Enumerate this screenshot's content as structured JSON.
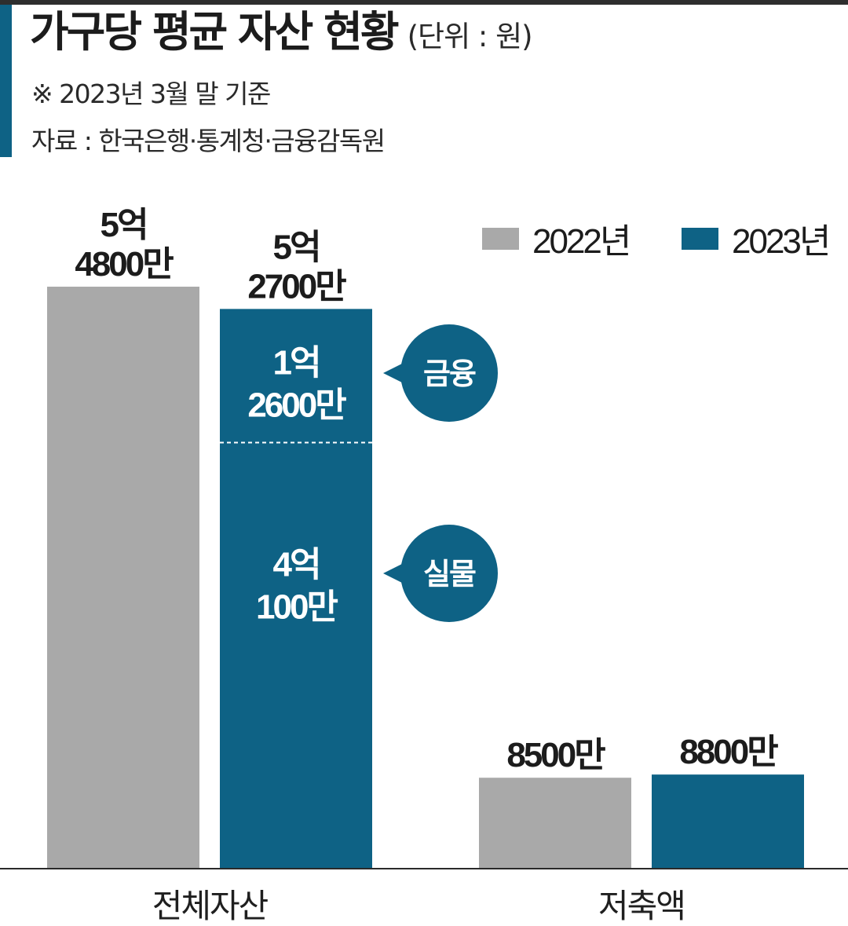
{
  "header": {
    "title": "가구당 평균 자산 현황",
    "unit_note": "(단위 : 원)",
    "date_note": "※ 2023년 3월 말 기준",
    "source": "자료 : 한국은행·통계청·금융감독원"
  },
  "colors": {
    "y2022": "#a9a9a9",
    "y2023": "#0e6285",
    "accent": "#0e6285"
  },
  "chart_data": {
    "type": "bar",
    "unit": "원",
    "categories": [
      "전체자산",
      "저축액"
    ],
    "series": [
      {
        "name": "2022년",
        "values": [
          548000000,
          85000000
        ],
        "labels": [
          [
            "5억",
            "4800만"
          ],
          [
            "8500만"
          ]
        ]
      },
      {
        "name": "2023년",
        "values": [
          527000000,
          88000000
        ],
        "labels": [
          [
            "5억",
            "2700만"
          ],
          [
            "8800만"
          ]
        ]
      }
    ],
    "breakdown_2023_total_assets": [
      {
        "name": "금융",
        "value": 126000000,
        "label": [
          "1억",
          "2600만"
        ]
      },
      {
        "name": "실물",
        "value": 401000000,
        "label": [
          "4억",
          "100만"
        ]
      }
    ],
    "legend_position": "top-right",
    "grid": false
  }
}
